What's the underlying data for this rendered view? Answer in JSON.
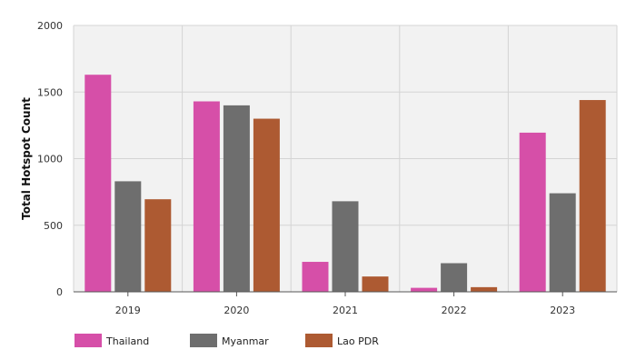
{
  "chart_data": {
    "type": "bar",
    "title": "",
    "xlabel": "",
    "ylabel": "Total Hotspot Count",
    "categories": [
      "2019",
      "2020",
      "2021",
      "2022",
      "2023"
    ],
    "ylim": [
      0,
      2000
    ],
    "yticks": [
      0,
      500,
      1000,
      1500,
      2000
    ],
    "grid": true,
    "legend_position": "bottom-left",
    "series": [
      {
        "name": "Thailand",
        "color": "#d64fa8",
        "values": [
          1630,
          1430,
          225,
          30,
          1195
        ]
      },
      {
        "name": "Myanmar",
        "color": "#6e6e6e",
        "values": [
          830,
          1400,
          680,
          215,
          740
        ]
      },
      {
        "name": "Lao PDR",
        "color": "#ad5a32",
        "values": [
          695,
          1300,
          115,
          35,
          1440
        ]
      }
    ]
  }
}
